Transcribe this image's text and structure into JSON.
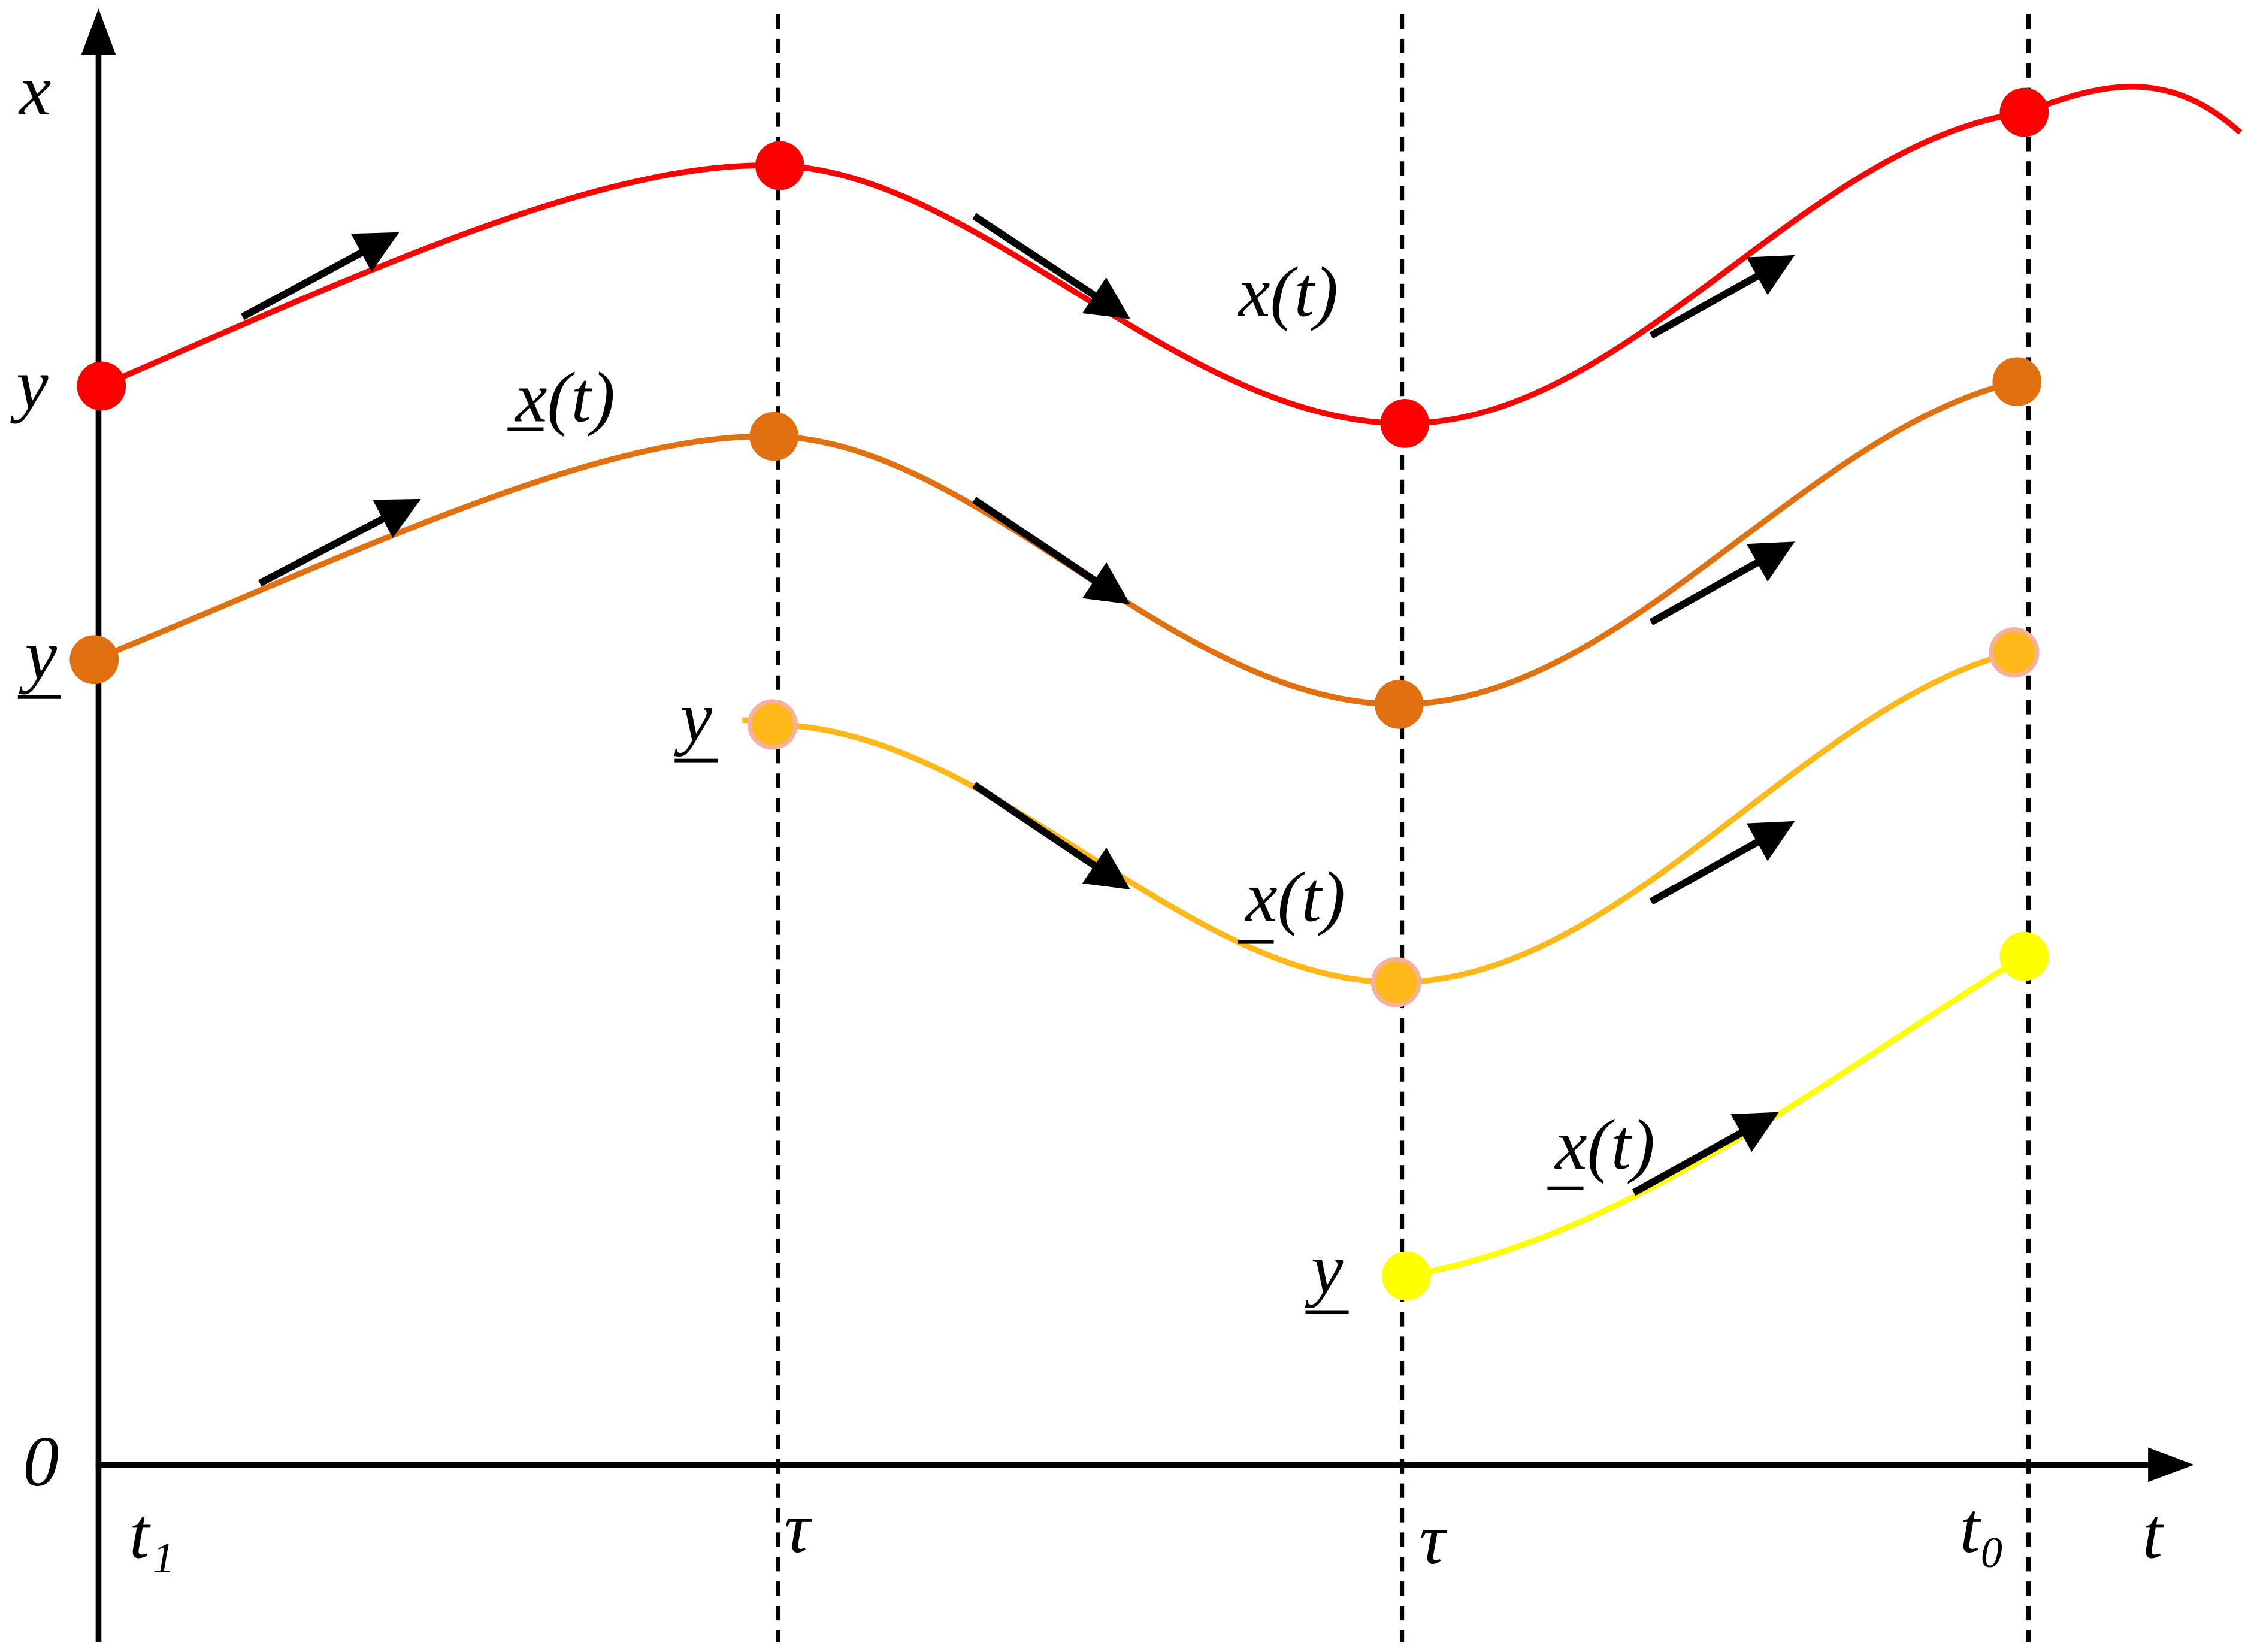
{
  "axes": {
    "vertical_label": "x",
    "horizontal_label": "t",
    "origin": "0"
  },
  "time_marks": [
    "t₁",
    "τ",
    "τ",
    "t₀"
  ],
  "curve_labels": [
    "x(t)",
    "x(t)",
    "x(t)",
    "x(t)"
  ],
  "start_labels": [
    "y",
    "y",
    "y",
    "y"
  ]
}
